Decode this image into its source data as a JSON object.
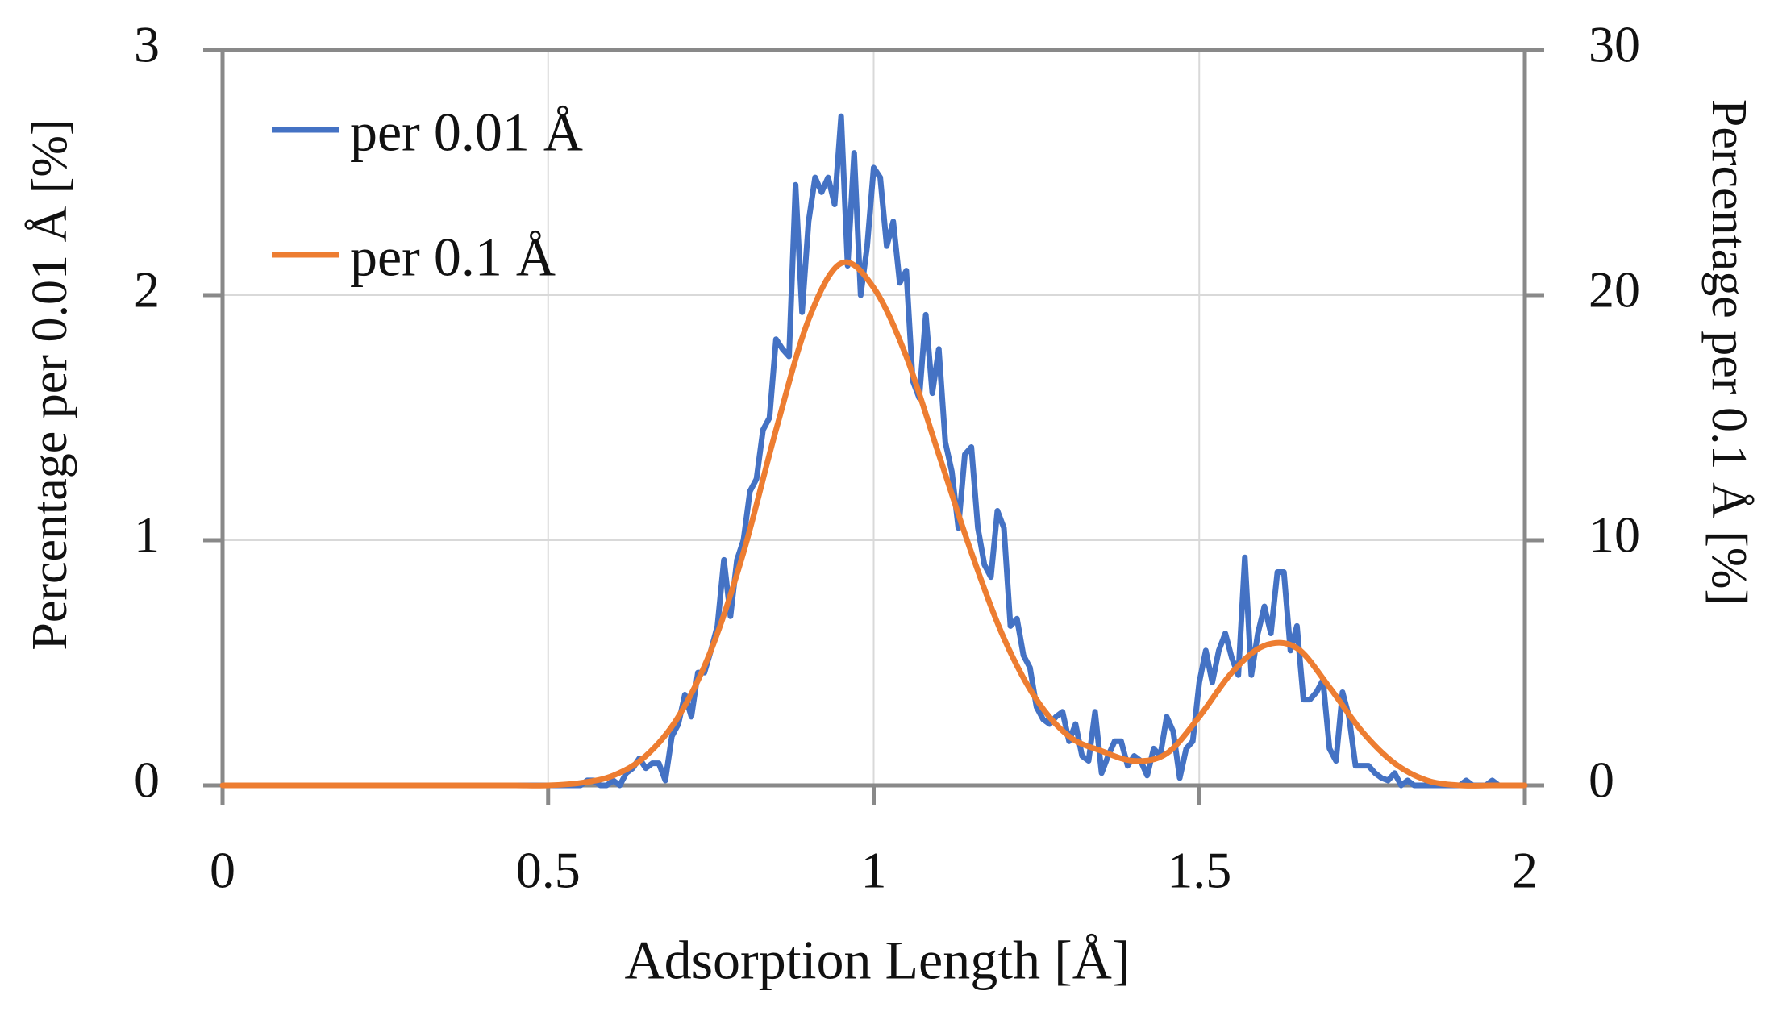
{
  "chart_data": {
    "type": "line",
    "xlabel": "Adsorption Length [Å]",
    "ylabel": "Percentage per 0.01 Å [%]",
    "y2label": "Percentage per 0.1 Å [%]",
    "xlim": [
      0,
      2
    ],
    "xticks": [
      0,
      0.5,
      1,
      1.5,
      2
    ],
    "ylim": [
      0,
      3
    ],
    "yticks": [
      0,
      1,
      2,
      3
    ],
    "y2lim": [
      0,
      30
    ],
    "y2ticks": [
      0,
      10,
      20,
      30
    ],
    "grid": true,
    "legend": "upper left",
    "series": [
      {
        "name": "per 0.01 Å",
        "color": "#4472c4",
        "smooth": false,
        "x": [
          0,
          0.01,
          0.02,
          0.03,
          0.04,
          0.05,
          0.06,
          0.07,
          0.08,
          0.09,
          0.1,
          0.11,
          0.12,
          0.13,
          0.14,
          0.15,
          0.16,
          0.17,
          0.18,
          0.19,
          0.2,
          0.21,
          0.22,
          0.23,
          0.24,
          0.25,
          0.26,
          0.27,
          0.28,
          0.29,
          0.3,
          0.31,
          0.32,
          0.33,
          0.34,
          0.35,
          0.36,
          0.37,
          0.38,
          0.39,
          0.4,
          0.41,
          0.42,
          0.43,
          0.44,
          0.45,
          0.46,
          0.47,
          0.48,
          0.49,
          0.5,
          0.51,
          0.52,
          0.53,
          0.54,
          0.55,
          0.56,
          0.57,
          0.58,
          0.59,
          0.6,
          0.61,
          0.62,
          0.63,
          0.64,
          0.65,
          0.66,
          0.67,
          0.68,
          0.69,
          0.7,
          0.71,
          0.72,
          0.73,
          0.74,
          0.75,
          0.76,
          0.77,
          0.78,
          0.79,
          0.8,
          0.81,
          0.82,
          0.83,
          0.84,
          0.85,
          0.86,
          0.87,
          0.88,
          0.89,
          0.9,
          0.91,
          0.92,
          0.93,
          0.94,
          0.95,
          0.96,
          0.97,
          0.98,
          0.99,
          1,
          1.01,
          1.02,
          1.03,
          1.04,
          1.05,
          1.06,
          1.07,
          1.08,
          1.09,
          1.1,
          1.11,
          1.12,
          1.13,
          1.14,
          1.15,
          1.16,
          1.17,
          1.18,
          1.19,
          1.2,
          1.21,
          1.22,
          1.23,
          1.24,
          1.25,
          1.26,
          1.27,
          1.28,
          1.29,
          1.3,
          1.31,
          1.32,
          1.33,
          1.34,
          1.35,
          1.36,
          1.37,
          1.38,
          1.39,
          1.4,
          1.41,
          1.42,
          1.43,
          1.44,
          1.45,
          1.46,
          1.47,
          1.48,
          1.49,
          1.5,
          1.51,
          1.52,
          1.53,
          1.54,
          1.55,
          1.56,
          1.57,
          1.58,
          1.59,
          1.6,
          1.61,
          1.62,
          1.63,
          1.64,
          1.65,
          1.66,
          1.67,
          1.68,
          1.69,
          1.7,
          1.71,
          1.72,
          1.73,
          1.74,
          1.75,
          1.76,
          1.77,
          1.78,
          1.79,
          1.8,
          1.81,
          1.82,
          1.83,
          1.84,
          1.85,
          1.86,
          1.87,
          1.88,
          1.89,
          1.9,
          1.91,
          1.92,
          1.93,
          1.94,
          1.95,
          1.96,
          1.97,
          1.98,
          1.99,
          2
        ],
        "values": [
          0,
          0,
          0,
          0,
          0,
          0,
          0,
          0,
          0,
          0,
          0,
          0,
          0,
          0,
          0,
          0,
          0,
          0,
          0,
          0,
          0,
          0,
          0,
          0,
          0,
          0,
          0,
          0,
          0,
          0,
          0,
          0,
          0,
          0,
          0,
          0,
          0,
          0,
          0,
          0,
          0,
          0,
          0,
          0,
          0,
          0,
          0,
          0,
          0,
          0,
          0,
          0,
          0,
          0,
          0,
          0,
          0.02,
          0.02,
          0,
          0,
          0.02,
          0,
          0.05,
          0.07,
          0.11,
          0.07,
          0.09,
          0.09,
          0.02,
          0.2,
          0.25,
          0.37,
          0.28,
          0.46,
          0.46,
          0.55,
          0.65,
          0.92,
          0.69,
          0.92,
          1.0,
          1.2,
          1.25,
          1.45,
          1.5,
          1.82,
          1.78,
          1.75,
          2.45,
          1.93,
          2.3,
          2.48,
          2.42,
          2.48,
          2.37,
          2.73,
          2.12,
          2.58,
          2.0,
          2.2,
          2.52,
          2.48,
          2.2,
          2.3,
          2.05,
          2.1,
          1.65,
          1.58,
          1.92,
          1.6,
          1.78,
          1.4,
          1.28,
          1.05,
          1.35,
          1.38,
          1.05,
          0.9,
          0.85,
          1.12,
          1.05,
          0.65,
          0.68,
          0.53,
          0.48,
          0.32,
          0.27,
          0.25,
          0.28,
          0.3,
          0.18,
          0.25,
          0.12,
          0.1,
          0.3,
          0.05,
          0.12,
          0.18,
          0.18,
          0.08,
          0.12,
          0.1,
          0.04,
          0.15,
          0.12,
          0.28,
          0.22,
          0.03,
          0.15,
          0.18,
          0.42,
          0.55,
          0.42,
          0.55,
          0.62,
          0.52,
          0.45,
          0.93,
          0.45,
          0.62,
          0.73,
          0.62,
          0.87,
          0.87,
          0.55,
          0.65,
          0.35,
          0.35,
          0.38,
          0.43,
          0.15,
          0.1,
          0.38,
          0.28,
          0.08,
          0.08,
          0.08,
          0.05,
          0.03,
          0.02,
          0.05,
          0,
          0.02,
          0,
          0,
          0,
          0,
          0,
          0,
          0,
          0,
          0.02,
          0,
          0,
          0,
          0.02,
          0,
          0,
          0,
          0,
          0
        ]
      },
      {
        "name": "per 0.1 Å",
        "color": "#ed7d31",
        "axis": "y2",
        "smooth": true,
        "x": [
          0,
          0.05,
          0.1,
          0.15,
          0.2,
          0.25,
          0.3,
          0.35,
          0.4,
          0.45,
          0.5,
          0.55,
          0.6,
          0.65,
          0.7,
          0.75,
          0.8,
          0.85,
          0.9,
          0.95,
          1,
          1.05,
          1.1,
          1.15,
          1.2,
          1.25,
          1.3,
          1.35,
          1.4,
          1.45,
          1.5,
          1.55,
          1.6,
          1.65,
          1.7,
          1.75,
          1.8,
          1.85,
          1.9,
          1.95,
          2
        ],
        "values": [
          0,
          0,
          0,
          0,
          0,
          0,
          0,
          0,
          0,
          0,
          0,
          0.1,
          0.4,
          1.2,
          2.8,
          5.5,
          9.5,
          14.5,
          19.0,
          21.3,
          20.3,
          17.5,
          13.5,
          9.5,
          6.0,
          3.5,
          2.0,
          1.4,
          1.0,
          1.3,
          2.8,
          4.6,
          5.7,
          5.6,
          4.0,
          2.2,
          0.9,
          0.2,
          0,
          0,
          0
        ]
      }
    ]
  }
}
